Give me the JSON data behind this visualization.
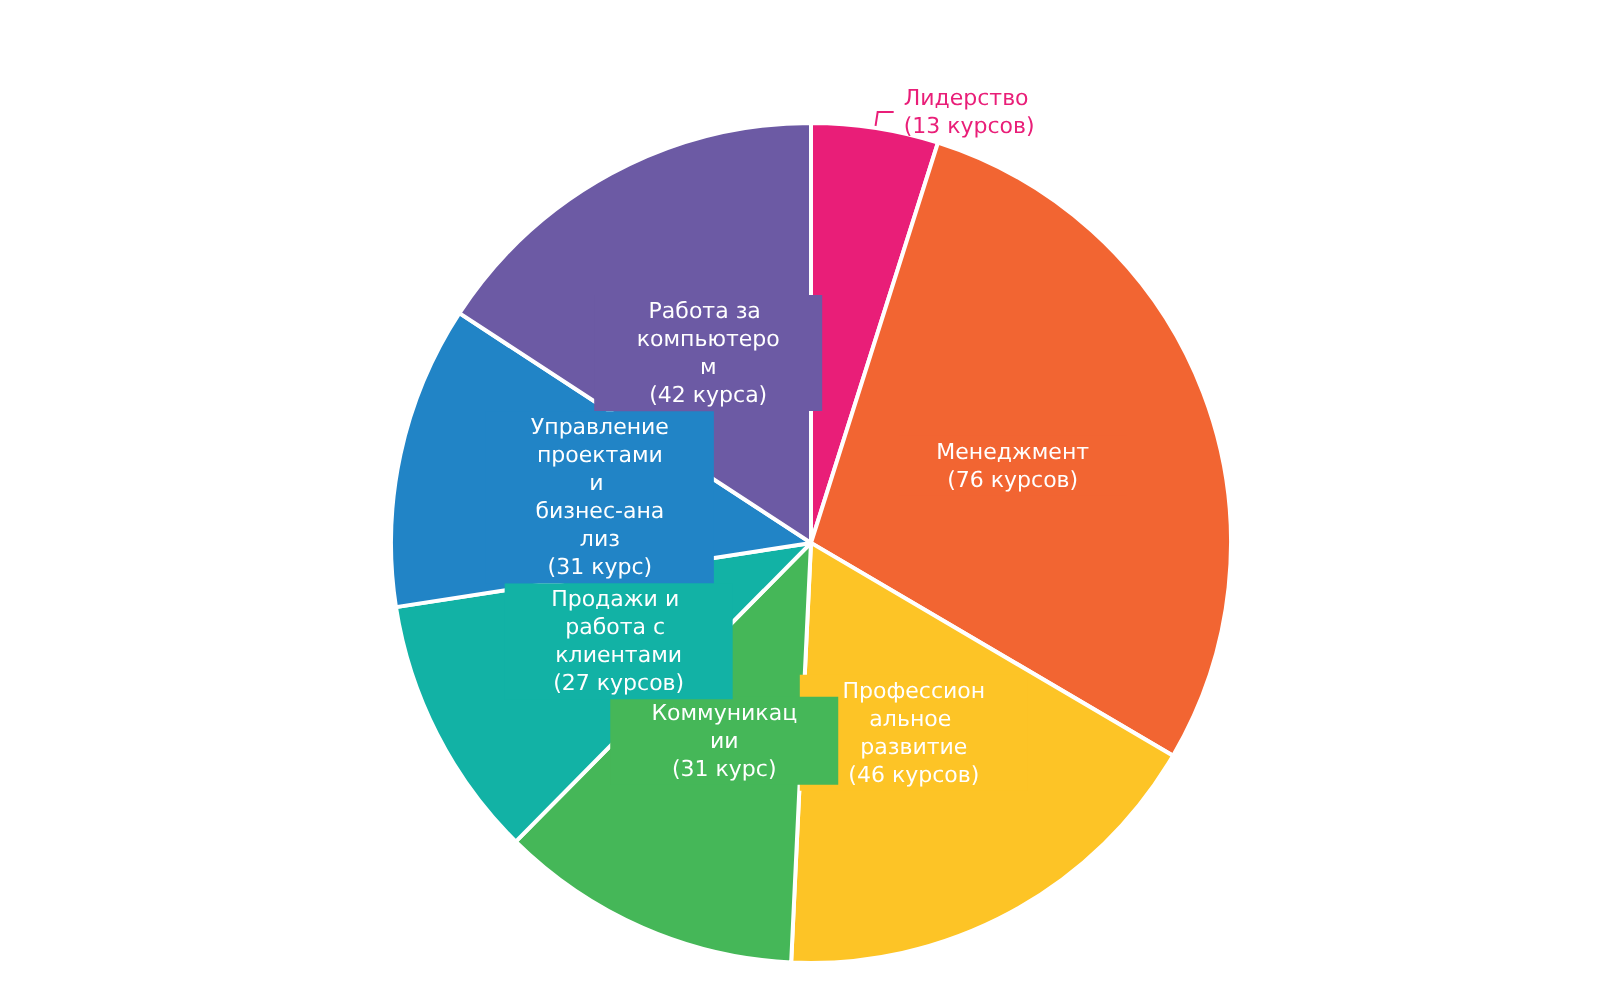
{
  "chart_data": {
    "type": "pie",
    "categories": [
      "Лидерство",
      "Менеджмент",
      "Профессиональное развитие",
      "Коммуникации",
      "Продажи и работа с клиентами",
      "Управление проектами и бизнес-анализ",
      "Работа за компьютером"
    ],
    "values": [
      13,
      76,
      46,
      31,
      27,
      31,
      42
    ],
    "value_labels": [
      "(13 курсов)",
      "(76 курсов)",
      "(46 курсов)",
      "(31 курс)",
      "(27 курсов)",
      "(31 курс)",
      "(42 курса)"
    ],
    "colors": [
      "#e91e78",
      "#f26532",
      "#fdc426",
      "#45b758",
      "#12b2a5",
      "#2184c6",
      "#6c5aa4"
    ],
    "legend": false
  }
}
